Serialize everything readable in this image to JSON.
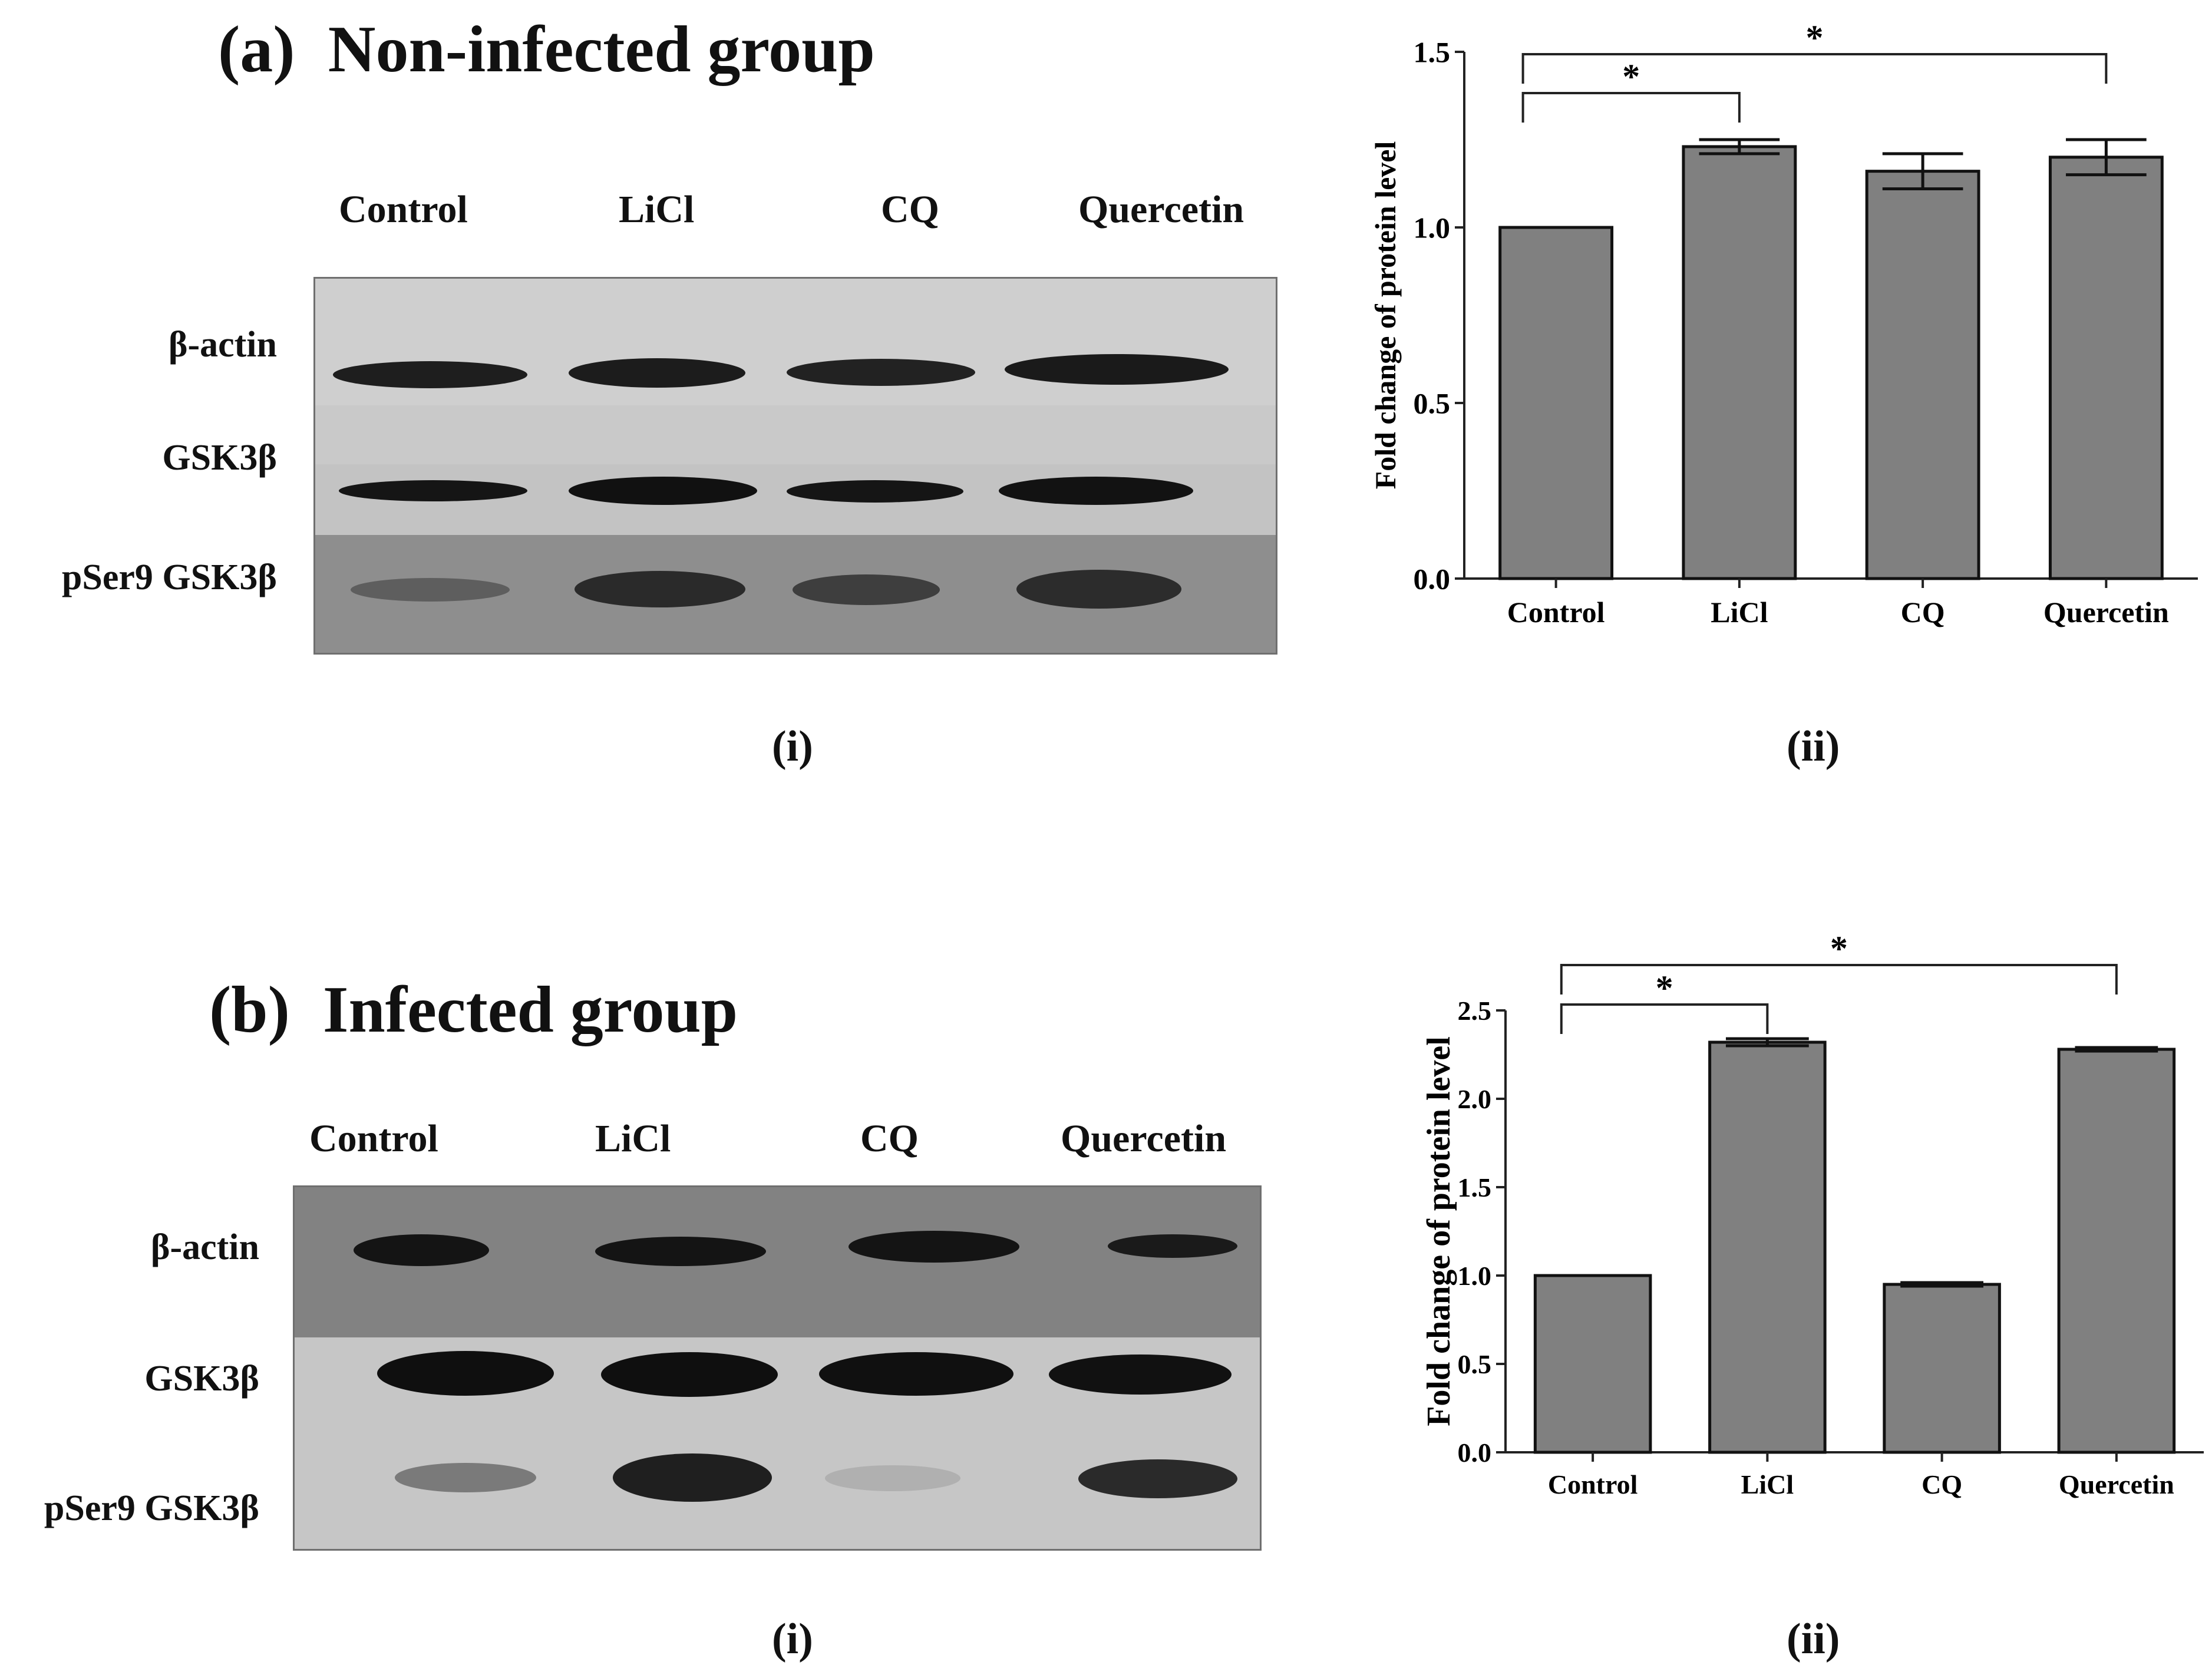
{
  "panel_a": {
    "letter": "(a)",
    "title": "Non-infected group",
    "blot": {
      "lanes": [
        "Control",
        "LiCl",
        "CQ",
        "Quercetin"
      ],
      "rows": [
        "β-actin",
        "GSK3β",
        "pSer9 GSK3β"
      ],
      "sublabel": "(i)"
    },
    "chart_sublabel": "(ii)"
  },
  "panel_b": {
    "letter": "(b)",
    "title": "Infected group",
    "blot": {
      "lanes": [
        "Control",
        "LiCl",
        "CQ",
        "Quercetin"
      ],
      "rows": [
        "β-actin",
        "GSK3β",
        "pSer9 GSK3β"
      ],
      "sublabel": "(i)"
    },
    "chart_sublabel": "(ii)"
  },
  "chart_data": [
    {
      "type": "bar",
      "categories": [
        "Control",
        "LiCl",
        "CQ",
        "Quercetin"
      ],
      "values": [
        1.0,
        1.23,
        1.16,
        1.2
      ],
      "errors": [
        0.0,
        0.02,
        0.05,
        0.05
      ],
      "ylabel": "Fold change of protein level",
      "xlabel": "",
      "ylim": [
        0,
        1.5
      ],
      "yticks": [
        "0.0",
        "0.5",
        "1.0",
        "1.5"
      ],
      "significance": [
        {
          "from": "Control",
          "to": "LiCl",
          "label": "*"
        },
        {
          "from": "Control",
          "to": "Quercetin",
          "label": "*"
        }
      ],
      "bar_color": "#808080",
      "grid": false
    },
    {
      "type": "bar",
      "categories": [
        "Control",
        "LiCl",
        "CQ",
        "Quercetin"
      ],
      "values": [
        1.0,
        2.32,
        0.95,
        2.28
      ],
      "errors": [
        0.0,
        0.02,
        0.01,
        0.01
      ],
      "ylabel": "Fold change of protein level",
      "xlabel": "",
      "ylim": [
        0,
        2.5
      ],
      "yticks": [
        "0.0",
        "0.5",
        "1.0",
        "1.5",
        "2.0",
        "2.5"
      ],
      "significance": [
        {
          "from": "Control",
          "to": "LiCl",
          "label": "*"
        },
        {
          "from": "Control",
          "to": "Quercetin",
          "label": "*"
        }
      ],
      "bar_color": "#808080",
      "grid": false
    }
  ]
}
